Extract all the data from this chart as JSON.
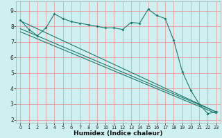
{
  "xlabel": "Humidex (Indice chaleur)",
  "bg_color": "#cff0f0",
  "grid_color": "#e8a0a0",
  "line_color": "#1a7a6e",
  "xlim": [
    -0.5,
    23.5
  ],
  "ylim": [
    1.8,
    9.6
  ],
  "yticks": [
    2,
    3,
    4,
    5,
    6,
    7,
    8,
    9
  ],
  "xticks": [
    0,
    1,
    2,
    3,
    4,
    5,
    6,
    7,
    8,
    9,
    10,
    11,
    12,
    13,
    14,
    15,
    16,
    17,
    18,
    19,
    20,
    21,
    22,
    23
  ],
  "line1_x": [
    0,
    1,
    2,
    3,
    4,
    5,
    6,
    7,
    8,
    9,
    10,
    11,
    12,
    13,
    14,
    15,
    16,
    17,
    18,
    19,
    20,
    21,
    22,
    23
  ],
  "line1_y": [
    8.4,
    7.8,
    7.4,
    7.9,
    8.8,
    8.5,
    8.3,
    8.2,
    8.1,
    8.0,
    7.9,
    7.9,
    7.8,
    8.25,
    8.2,
    9.1,
    8.7,
    8.5,
    7.1,
    5.1,
    3.9,
    3.0,
    2.4,
    2.5
  ],
  "line2_x": [
    0,
    23
  ],
  "line2_y": [
    8.35,
    2.5
  ],
  "line3_x": [
    0,
    23
  ],
  "line3_y": [
    7.85,
    2.5
  ],
  "line4_x": [
    0,
    23
  ],
  "line4_y": [
    7.65,
    2.4
  ]
}
